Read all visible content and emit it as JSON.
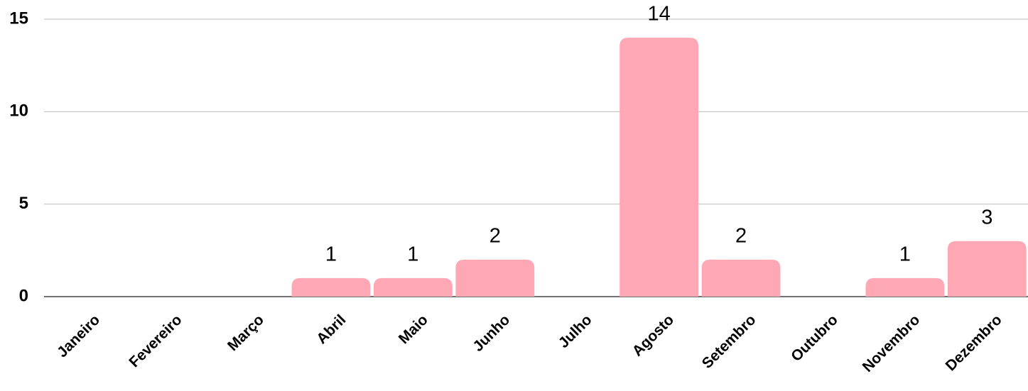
{
  "chart_data": {
    "type": "bar",
    "categories": [
      "Janeiro",
      "Fevereiro",
      "Março",
      "Abril",
      "Maio",
      "Junho",
      "Julho",
      "Agosto",
      "Setembro",
      "Outubro",
      "Novembro",
      "Dezembro"
    ],
    "values": [
      0,
      0,
      0,
      1,
      1,
      2,
      0,
      14,
      2,
      0,
      1,
      3
    ],
    "color": "#ffa8b5",
    "ylim": [
      0,
      15
    ],
    "yticks": [
      0,
      5,
      10,
      15
    ],
    "grid": true
  }
}
